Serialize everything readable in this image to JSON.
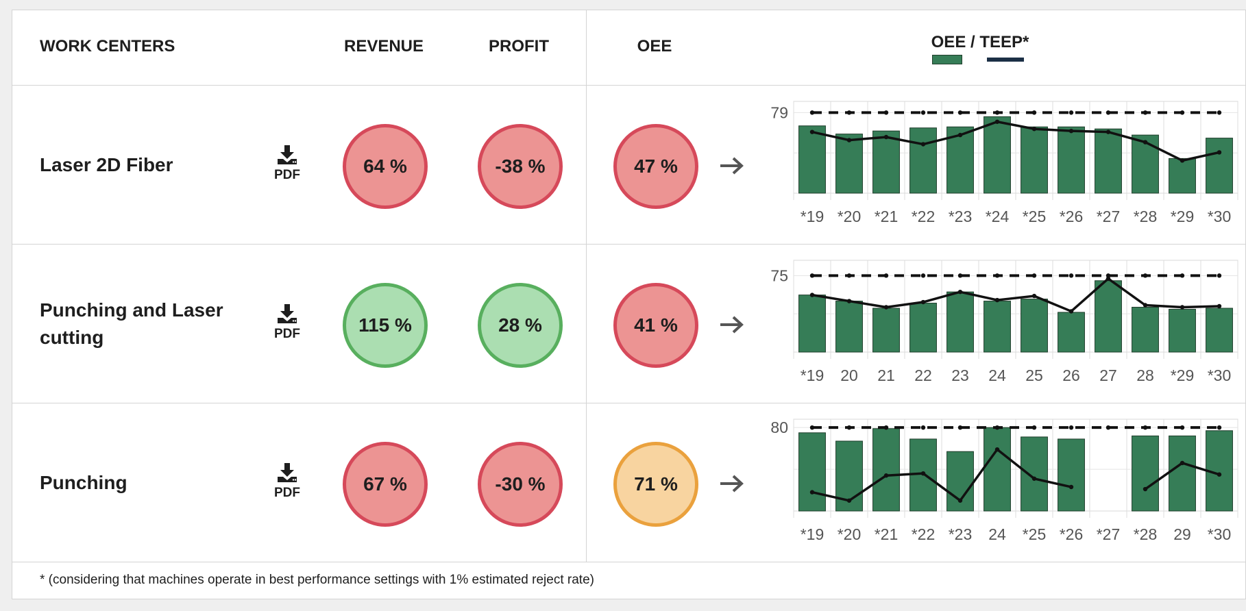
{
  "header": {
    "work_centers": "WORK CENTERS",
    "revenue": "REVENUE",
    "profit": "PROFIT",
    "oee": "OEE",
    "legend_title": "OEE / TEEP*"
  },
  "colors": {
    "bar": "#367d57",
    "bad": "#d6495a",
    "good": "#58af5e",
    "warn": "#eaa13d",
    "teep_line": "#1b2f45"
  },
  "rows": [
    {
      "name": "Laser 2D Fiber",
      "pdf_label": "PDF",
      "revenue": "64 %",
      "revenue_status": "bad",
      "profit": "-38 %",
      "profit_status": "bad",
      "oee": "47 %",
      "oee_status": "bad"
    },
    {
      "name": "Punching and Laser cutting",
      "pdf_label": "PDF",
      "revenue": "115 %",
      "revenue_status": "good",
      "profit": "28 %",
      "profit_status": "good",
      "oee": "41 %",
      "oee_status": "bad"
    },
    {
      "name": "Punching",
      "pdf_label": "PDF",
      "revenue": "67 %",
      "revenue_status": "bad",
      "profit": "-30 %",
      "profit_status": "bad",
      "oee": "71 %",
      "oee_status": "warn"
    }
  ],
  "chart_data": [
    {
      "type": "bar",
      "categories": [
        "*19",
        "*20",
        "*21",
        "*22",
        "*23",
        "*24",
        "*25",
        "*26",
        "*27",
        "*28",
        "*29",
        "*30"
      ],
      "ytick": "79",
      "ylim": [
        0,
        90
      ],
      "series": [
        {
          "kind": "bar",
          "values": [
            66,
            58,
            61,
            64,
            65,
            75,
            65,
            65,
            63,
            57,
            34,
            54
          ]
        },
        {
          "kind": "line",
          "values": [
            60,
            52,
            55,
            48,
            57,
            70,
            63,
            61,
            60,
            50,
            32,
            40
          ]
        },
        {
          "kind": "dashed",
          "values": [
            79,
            79,
            79,
            79,
            79,
            79,
            79,
            79,
            79,
            79,
            79,
            79
          ]
        }
      ]
    },
    {
      "type": "bar",
      "categories": [
        "*19",
        "20",
        "21",
        "22",
        "23",
        "24",
        "25",
        "26",
        "27",
        "28",
        "*29",
        "*30"
      ],
      "ytick": "75",
      "ylim": [
        0,
        90
      ],
      "series": [
        {
          "kind": "bar",
          "values": [
            56,
            50,
            43,
            48,
            59,
            50,
            52,
            39,
            70,
            44,
            42,
            43
          ]
        },
        {
          "kind": "line",
          "values": [
            56,
            50,
            44,
            49,
            59,
            51,
            55,
            40,
            72,
            46,
            44,
            45
          ]
        },
        {
          "kind": "dashed",
          "values": [
            75,
            75,
            75,
            75,
            75,
            75,
            75,
            75,
            75,
            75,
            75,
            75
          ]
        }
      ]
    },
    {
      "type": "bar",
      "categories": [
        "*19",
        "*20",
        "*21",
        "*22",
        "*23",
        "24",
        "*25",
        "*26",
        "*27",
        "*28",
        "29",
        "*30"
      ],
      "ytick": "80",
      "ylim": [
        0,
        88
      ],
      "series": [
        {
          "kind": "bar",
          "values": [
            75,
            67,
            79,
            69,
            57,
            80,
            71,
            69,
            null,
            72,
            72,
            77
          ]
        },
        {
          "kind": "line",
          "values": [
            18,
            10,
            34,
            36,
            10,
            59,
            31,
            23,
            null,
            21,
            46,
            35
          ]
        },
        {
          "kind": "dashed",
          "values": [
            80,
            80,
            80,
            80,
            80,
            80,
            80,
            80,
            80,
            80,
            80,
            80
          ]
        }
      ]
    }
  ],
  "footer": "* (considering that machines operate in best performance settings with 1% estimated reject rate)"
}
